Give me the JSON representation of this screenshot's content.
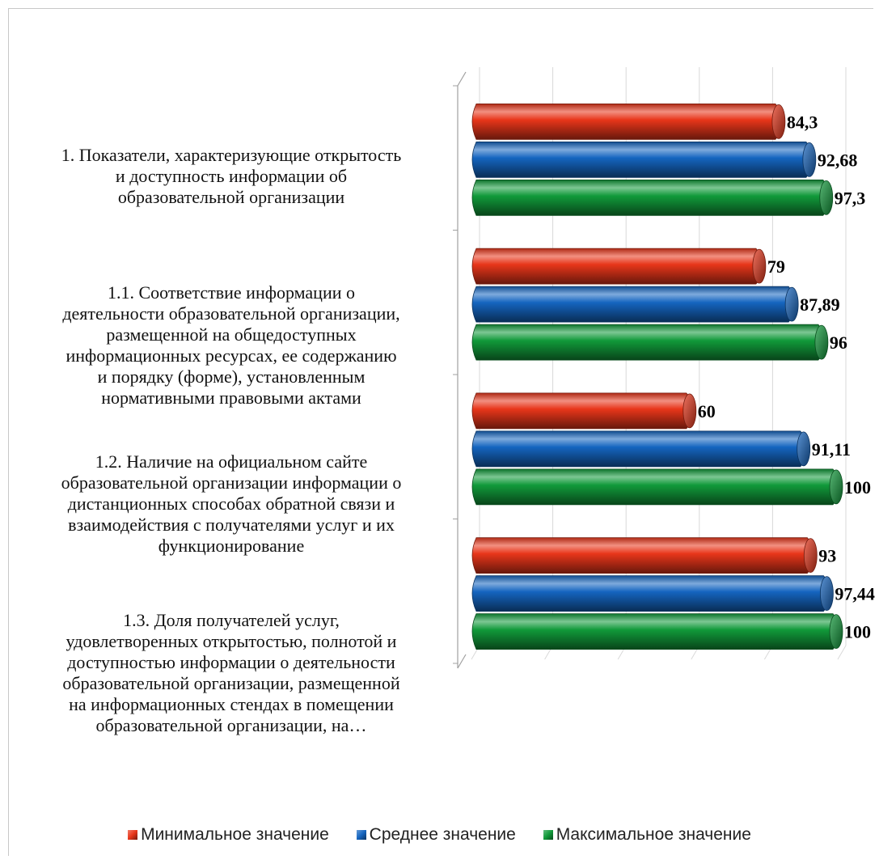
{
  "chart_data": {
    "type": "bar",
    "orientation": "horizontal",
    "style": "3d-cylinder",
    "categories": [
      "1. Показатели, характеризующие открытость\nи доступность информации об\nобразовательной организации",
      "1.1. Соответствие информации о\nдеятельности образовательной организации,\nразмещенной на общедоступных\nинформационных ресурсах, ее содержанию\nи порядку (форме), установленным\nнормативными правовыми актами",
      "1.2. Наличие на официальном сайте\nобразовательной организации информации о\nдистанционных способах обратной связи и\nвзаимодействия с получателями услуг и их\nфункционирование",
      "1.3. Доля получателей услуг,\nудовлетворенных открытостью, полнотой и\nдоступностью информации о деятельности\nобразовательной организации, размещенной\nна информационных стендах в помещении\nобразовательной организации, на…"
    ],
    "series": [
      {
        "name": "Минимальное значение",
        "color": "#e8361a",
        "values": [
          84.3,
          79,
          60,
          93
        ],
        "labels": [
          "84,3",
          "79",
          "60",
          "93"
        ]
      },
      {
        "name": "Среднее значение",
        "color": "#1565c0",
        "values": [
          92.68,
          87.89,
          91.11,
          97.44
        ],
        "labels": [
          "92,68",
          "87,89",
          "91,11",
          "97,44"
        ]
      },
      {
        "name": "Максимальное значение",
        "color": "#119a3a",
        "values": [
          97.3,
          96,
          100,
          100
        ],
        "labels": [
          "97,3",
          "96",
          "100",
          "100"
        ]
      }
    ],
    "xlim": [
      0,
      100
    ],
    "grid": true,
    "legend_position": "bottom"
  }
}
